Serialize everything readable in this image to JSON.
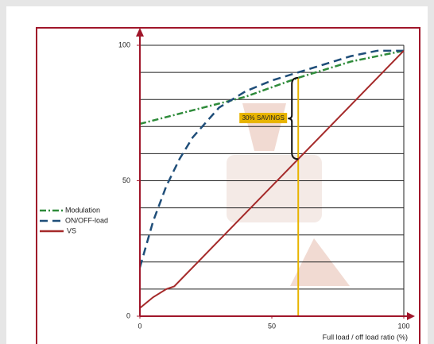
{
  "chart_data": {
    "type": "line",
    "x_label": "Full load / off load ratio (%)",
    "xlim": [
      0,
      100
    ],
    "xticks": [
      0,
      50,
      100
    ],
    "ylim": [
      0,
      100
    ],
    "yticks": [
      0,
      50,
      100
    ],
    "grid_step": 10,
    "series": [
      {
        "name": "Modulation",
        "color": "#2e8b3a",
        "dash": "8,3,2,3",
        "x": [
          0,
          20,
          40,
          60,
          80,
          100
        ],
        "values": [
          71,
          76,
          81,
          88,
          94,
          98
        ]
      },
      {
        "name": "ON/OFF-load",
        "color": "#1f4e79",
        "dash": "10,6",
        "x": [
          0,
          5,
          10,
          15,
          20,
          30,
          40,
          50,
          60,
          70,
          80,
          90,
          100
        ],
        "values": [
          18,
          35,
          48,
          58,
          66,
          77,
          83,
          87,
          90,
          93,
          96,
          98,
          98
        ]
      },
      {
        "name": "VS",
        "color": "#a52a2a",
        "dash": "none",
        "x": [
          0,
          5,
          10,
          13,
          100
        ],
        "values": [
          3,
          7,
          10,
          11,
          98
        ]
      }
    ],
    "annotation": {
      "text": "30% SAVINGS",
      "x": 60,
      "y_low": 58,
      "y_high": 88,
      "color": "#e8b400"
    }
  }
}
